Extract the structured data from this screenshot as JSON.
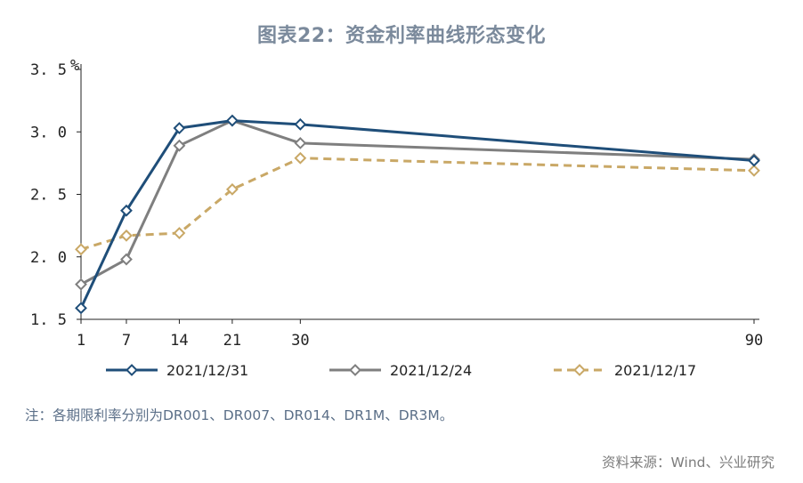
{
  "title": "图表22：资金利率曲线形态变化",
  "note": "注：各期限利率分别为DR001、DR007、DR014、DR1M、DR3M。",
  "source": "资料来源：Wind、兴业研究",
  "colors": {
    "series1": "#1f4e79",
    "series2": "#7f7f7f",
    "series3": "#c9a866"
  },
  "chart_data": {
    "type": "line",
    "ylabel": "%",
    "ylim": [
      1.5,
      3.5
    ],
    "yticks": [
      1.5,
      2.0,
      2.5,
      3.0,
      3.5
    ],
    "ytick_labels": [
      "1. 5",
      "2. 0",
      "2. 5",
      "3. 0",
      "3. 5"
    ],
    "x": [
      1,
      7,
      14,
      21,
      30,
      90
    ],
    "xtick_labels": [
      "1",
      "7",
      "14",
      "21",
      "30",
      "90"
    ],
    "grid": false,
    "legend_position": "bottom",
    "series": [
      {
        "name": "2021/12/31",
        "values": [
          1.59,
          2.37,
          3.03,
          3.09,
          3.06,
          2.77
        ],
        "style": "solid",
        "color": "#1f4e79"
      },
      {
        "name": "2021/12/24",
        "values": [
          1.78,
          1.98,
          2.89,
          3.09,
          2.91,
          2.78
        ],
        "style": "solid",
        "color": "#7f7f7f"
      },
      {
        "name": "2021/12/17",
        "values": [
          2.06,
          2.17,
          2.19,
          2.54,
          2.79,
          2.69
        ],
        "style": "dashed",
        "color": "#c9a866"
      }
    ]
  }
}
